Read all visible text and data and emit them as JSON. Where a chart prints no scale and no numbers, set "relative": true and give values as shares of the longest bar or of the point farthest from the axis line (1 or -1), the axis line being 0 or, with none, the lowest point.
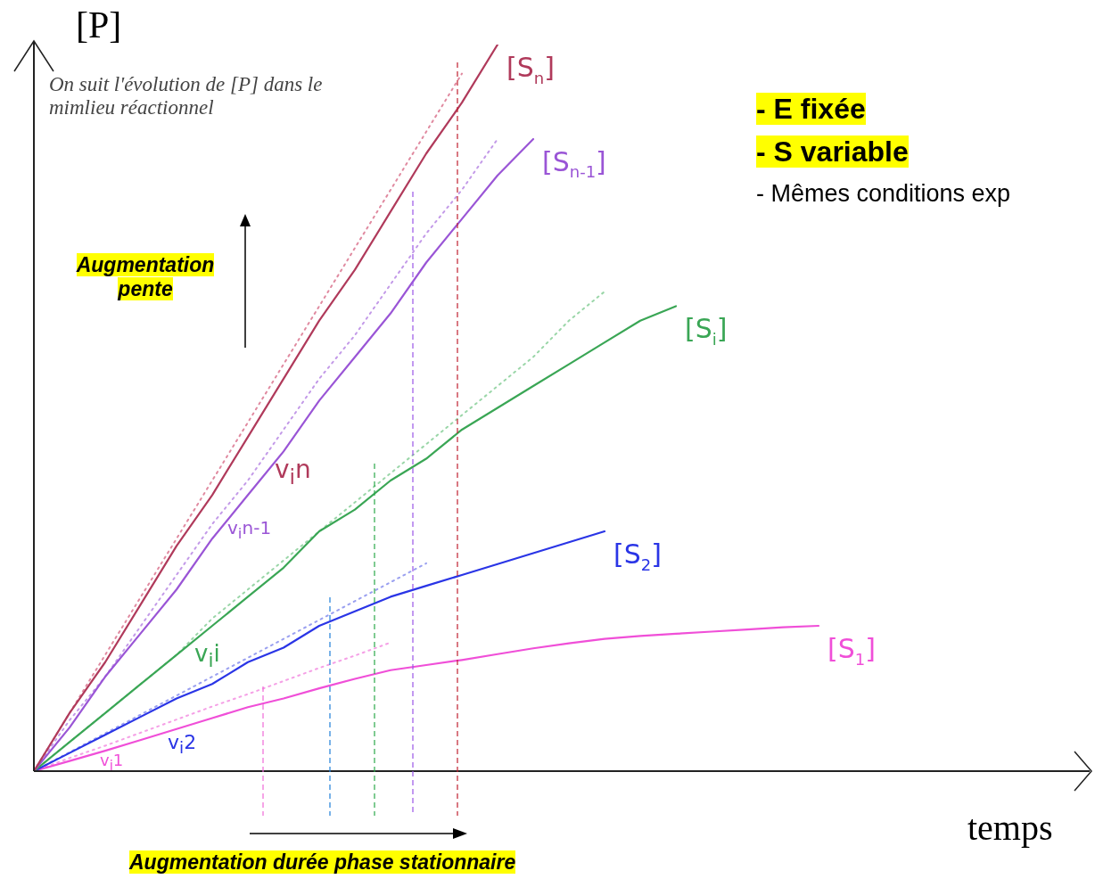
{
  "chart_data": {
    "type": "line",
    "relative": true,
    "legend": false,
    "marker": "none",
    "xlabel": "temps",
    "ylabel": "[P]",
    "categories": [
      null,
      null,
      null,
      null,
      null,
      null,
      null,
      null,
      null,
      null,
      null,
      null,
      null,
      null,
      null,
      null,
      null,
      null,
      null,
      null,
      null,
      null,
      null,
      null
    ],
    "series": [
      {
        "name": "[S$_{n}$]",
        "color": "#b03a5b",
        "values": [
          0,
          0.08,
          0.15,
          0.23,
          0.31,
          0.38,
          0.46,
          0.54,
          0.62,
          0.69,
          0.77,
          0.85,
          0.92,
          1,
          null,
          null,
          null,
          null,
          null,
          null,
          null,
          null,
          null,
          null
        ]
      },
      {
        "name": "[S$_{n-1}$]",
        "color": "#9a55d6",
        "values": [
          0,
          0.06,
          0.13,
          0.19,
          0.25,
          0.32,
          0.38,
          0.44,
          0.51,
          0.57,
          0.63,
          0.7,
          0.76,
          0.82,
          0.87,
          null,
          null,
          null,
          null,
          null,
          null,
          null,
          null,
          null
        ]
      },
      {
        "name": "[S$_{i}$]",
        "color": "#3aa655",
        "values": [
          0,
          0.04,
          0.08,
          0.12,
          0.16,
          0.2,
          0.24,
          0.28,
          0.33,
          0.36,
          0.4,
          0.43,
          0.47,
          0.5,
          0.53,
          0.56,
          0.59,
          0.62,
          0.64,
          null,
          null,
          null,
          null,
          null
        ]
      },
      {
        "name": "[S$_{2}$]",
        "color": "#2a35e6",
        "values": [
          0,
          0.025,
          0.05,
          0.075,
          0.1,
          0.12,
          0.15,
          0.17,
          0.2,
          0.22,
          0.24,
          0.255,
          0.27,
          0.285,
          0.3,
          0.315,
          0.33,
          null,
          null,
          null,
          null,
          null,
          null,
          null
        ]
      },
      {
        "name": "[S$_{1}$]",
        "color": "#f04fd8",
        "values": [
          0,
          0.014,
          0.028,
          0.043,
          0.058,
          0.073,
          0.088,
          0.1,
          0.114,
          0.127,
          0.139,
          0.146,
          0.153,
          0.161,
          0.169,
          0.176,
          0.182,
          0.186,
          0.189,
          0.192,
          0.195,
          0.198,
          0.2,
          null
        ]
      },
      {
        "color": "#e08aa0",
        "line_style": "dotted",
        "values": [
          0,
          0.08,
          0.16,
          0.24,
          0.32,
          0.4,
          0.48,
          0.56,
          0.64,
          0.72,
          0.8,
          0.88,
          0.96,
          null,
          null,
          null,
          null,
          null,
          null,
          null,
          null,
          null,
          null,
          null
        ]
      },
      {
        "color": "#c39ae8",
        "line_style": "dotted",
        "values": [
          0,
          0.07,
          0.13,
          0.2,
          0.27,
          0.34,
          0.4,
          0.47,
          0.54,
          0.6,
          0.67,
          0.74,
          0.8,
          0.87,
          null,
          null,
          null,
          null,
          null,
          null,
          null,
          null,
          null,
          null
        ]
      },
      {
        "color": "#9ad6a8",
        "line_style": "dotted",
        "values": [
          0,
          0.04,
          0.08,
          0.12,
          0.16,
          0.21,
          0.25,
          0.29,
          0.33,
          0.37,
          0.41,
          0.45,
          0.49,
          0.53,
          0.57,
          0.62,
          0.66,
          null,
          null,
          null,
          null,
          null,
          null,
          null
        ]
      },
      {
        "color": "#9aa0f0",
        "line_style": "dotted",
        "values": [
          0,
          0.026,
          0.052,
          0.078,
          0.104,
          0.13,
          0.156,
          0.182,
          0.208,
          0.234,
          0.26,
          0.286,
          null,
          null,
          null,
          null,
          null,
          null,
          null,
          null,
          null,
          null,
          null,
          null
        ]
      },
      {
        "color": "#f5a0e6",
        "line_style": "dotted",
        "values": [
          0,
          0.018,
          0.035,
          0.053,
          0.071,
          0.089,
          0.106,
          0.124,
          0.142,
          0.159,
          0.177,
          null,
          null,
          null,
          null,
          null,
          null,
          null,
          null,
          null,
          null,
          null,
          null,
          null
        ]
      }
    ],
    "annotations": [
      "On suit l'évolution de [P] dans le mimlieu réactionnel",
      "- E fixée",
      "- S variable",
      "- Mêmes conditions exp",
      "Augmentation pente",
      "Augmentation durée phase stationnaire",
      "v$_{i}$n",
      "v$_{i}$n-1",
      "v$_{i}$i",
      "v$_{i}$2",
      "v$_{i}$1"
    ]
  }
}
